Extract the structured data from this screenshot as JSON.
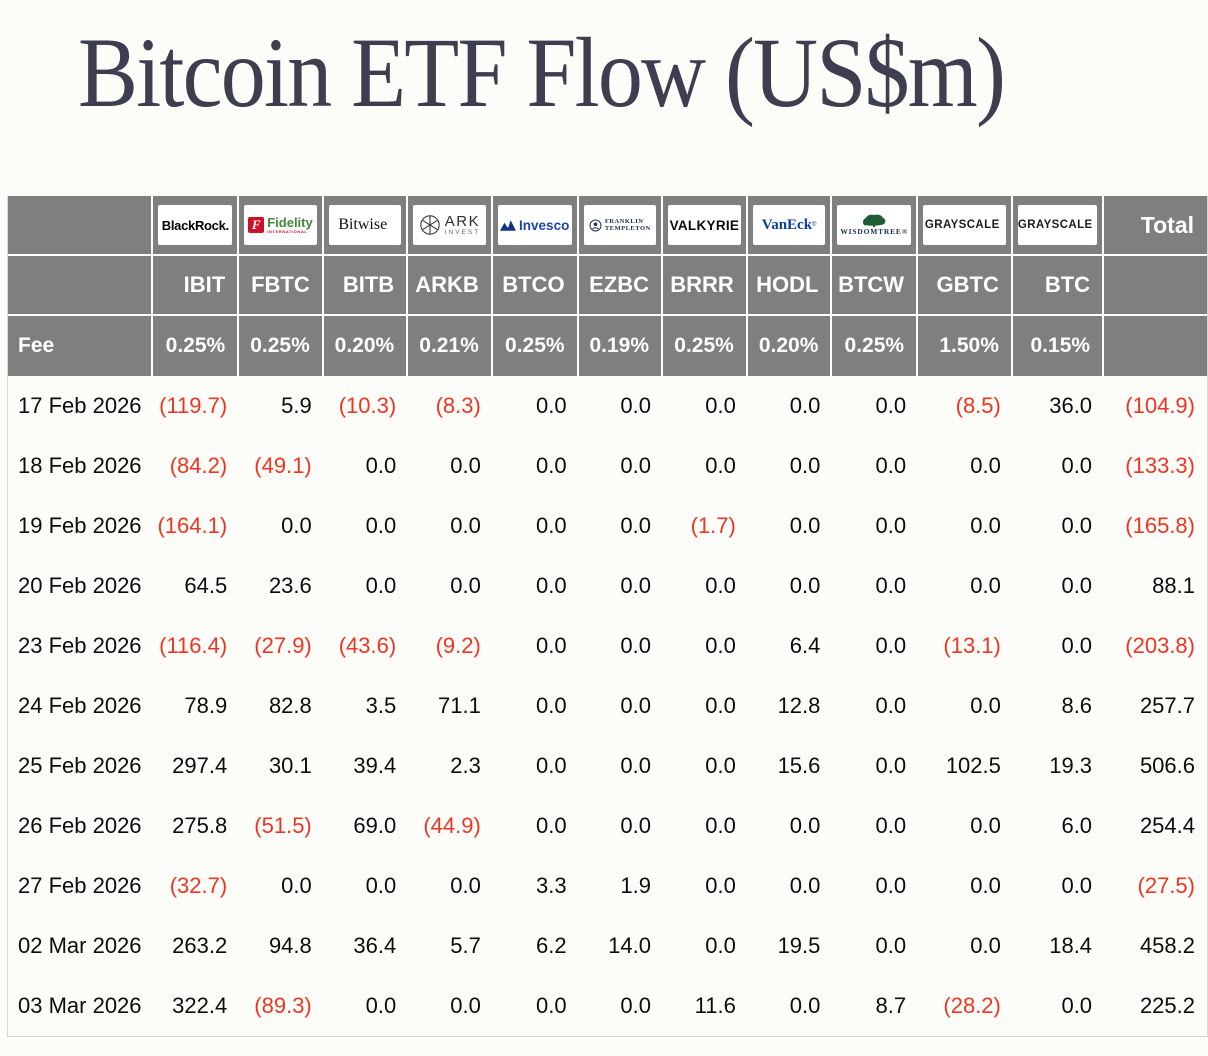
{
  "page": {
    "title": "Bitcoin ETF Flow (US$m)"
  },
  "colors": {
    "background": "#fcfcf8",
    "title_text": "#3d3e4f",
    "header_bg": "#7f7f7f",
    "header_text": "#ffffff",
    "value_text": "#0c0c0c",
    "negative_value": "#ee3524",
    "logo_box_bg": "#ffffff"
  },
  "table": {
    "fee_label": "Fee",
    "total_label": "Total",
    "columns": [
      {
        "ticker": "IBIT",
        "fee": "0.25%",
        "issuer": "BlackRock"
      },
      {
        "ticker": "FBTC",
        "fee": "0.25%",
        "issuer": "Fidelity"
      },
      {
        "ticker": "BITB",
        "fee": "0.20%",
        "issuer": "Bitwise"
      },
      {
        "ticker": "ARKB",
        "fee": "0.21%",
        "issuer": "ARK Invest"
      },
      {
        "ticker": "BTCO",
        "fee": "0.25%",
        "issuer": "Invesco"
      },
      {
        "ticker": "EZBC",
        "fee": "0.19%",
        "issuer": "Franklin Templeton"
      },
      {
        "ticker": "BRRR",
        "fee": "0.25%",
        "issuer": "Valkyrie"
      },
      {
        "ticker": "HODL",
        "fee": "0.20%",
        "issuer": "VanEck"
      },
      {
        "ticker": "BTCW",
        "fee": "0.25%",
        "issuer": "WisdomTree"
      },
      {
        "ticker": "GBTC",
        "fee": "1.50%",
        "issuer": "Grayscale"
      },
      {
        "ticker": "BTC",
        "fee": "0.15%",
        "issuer": "Grayscale"
      }
    ],
    "logos": {
      "blackrock": {
        "text": "BlackRock."
      },
      "fidelity": {
        "mark": "F",
        "name": "Fidelity",
        "sub": "INTERNATIONAL"
      },
      "bitwise": {
        "name": "Bitwise",
        "reg": "®"
      },
      "ark": {
        "name": "ARK",
        "sub": "INVEST"
      },
      "invesco": {
        "name": "Invesco"
      },
      "franklin": {
        "line1": "FRANKLIN",
        "line2": "TEMPLETON"
      },
      "valkyrie": {
        "name": "VALKYRIE"
      },
      "vaneck": {
        "name": "VanEck",
        "reg": "®"
      },
      "wisdomtree": {
        "name": "WISDOMTREE®"
      },
      "grayscale1": {
        "name": "GRAYSCALE",
        "reg": "®"
      },
      "grayscale2": {
        "name": "GRAYSCALE",
        "reg": "®"
      }
    },
    "rows": [
      {
        "date": "17 Feb 2026",
        "values": [
          "(119.7)",
          "5.9",
          "(10.3)",
          "(8.3)",
          "0.0",
          "0.0",
          "0.0",
          "0.0",
          "0.0",
          "(8.5)",
          "36.0"
        ],
        "total": "(104.9)"
      },
      {
        "date": "18 Feb 2026",
        "values": [
          "(84.2)",
          "(49.1)",
          "0.0",
          "0.0",
          "0.0",
          "0.0",
          "0.0",
          "0.0",
          "0.0",
          "0.0",
          "0.0"
        ],
        "total": "(133.3)"
      },
      {
        "date": "19 Feb 2026",
        "values": [
          "(164.1)",
          "0.0",
          "0.0",
          "0.0",
          "0.0",
          "0.0",
          "(1.7)",
          "0.0",
          "0.0",
          "0.0",
          "0.0"
        ],
        "total": "(165.8)"
      },
      {
        "date": "20 Feb 2026",
        "values": [
          "64.5",
          "23.6",
          "0.0",
          "0.0",
          "0.0",
          "0.0",
          "0.0",
          "0.0",
          "0.0",
          "0.0",
          "0.0"
        ],
        "total": "88.1"
      },
      {
        "date": "23 Feb 2026",
        "values": [
          "(116.4)",
          "(27.9)",
          "(43.6)",
          "(9.2)",
          "0.0",
          "0.0",
          "0.0",
          "6.4",
          "0.0",
          "(13.1)",
          "0.0"
        ],
        "total": "(203.8)"
      },
      {
        "date": "24 Feb 2026",
        "values": [
          "78.9",
          "82.8",
          "3.5",
          "71.1",
          "0.0",
          "0.0",
          "0.0",
          "12.8",
          "0.0",
          "0.0",
          "8.6"
        ],
        "total": "257.7"
      },
      {
        "date": "25 Feb 2026",
        "values": [
          "297.4",
          "30.1",
          "39.4",
          "2.3",
          "0.0",
          "0.0",
          "0.0",
          "15.6",
          "0.0",
          "102.5",
          "19.3"
        ],
        "total": "506.6"
      },
      {
        "date": "26 Feb 2026",
        "values": [
          "275.8",
          "(51.5)",
          "69.0",
          "(44.9)",
          "0.0",
          "0.0",
          "0.0",
          "0.0",
          "0.0",
          "0.0",
          "6.0"
        ],
        "total": "254.4"
      },
      {
        "date": "27 Feb 2026",
        "values": [
          "(32.7)",
          "0.0",
          "0.0",
          "0.0",
          "3.3",
          "1.9",
          "0.0",
          "0.0",
          "0.0",
          "0.0",
          "0.0"
        ],
        "total": "(27.5)"
      },
      {
        "date": "02 Mar 2026",
        "values": [
          "263.2",
          "94.8",
          "36.4",
          "5.7",
          "6.2",
          "14.0",
          "0.0",
          "19.5",
          "0.0",
          "0.0",
          "18.4"
        ],
        "total": "458.2"
      },
      {
        "date": "03 Mar 2026",
        "values": [
          "322.4",
          "(89.3)",
          "0.0",
          "0.0",
          "0.0",
          "0.0",
          "11.6",
          "0.0",
          "8.7",
          "(28.2)",
          "0.0"
        ],
        "total": "225.2"
      }
    ]
  },
  "chart_data": {
    "type": "table",
    "title": "Bitcoin ETF Flow (US$m)",
    "columns": [
      "IBIT",
      "FBTC",
      "BITB",
      "ARKB",
      "BTCO",
      "EZBC",
      "BRRR",
      "HODL",
      "BTCW",
      "GBTC",
      "BTC",
      "Total"
    ],
    "issuers": [
      "BlackRock",
      "Fidelity",
      "Bitwise",
      "ARK Invest",
      "Invesco",
      "Franklin Templeton",
      "Valkyrie",
      "VanEck",
      "WisdomTree",
      "Grayscale",
      "Grayscale"
    ],
    "fees_percent": [
      0.25,
      0.25,
      0.2,
      0.21,
      0.25,
      0.19,
      0.25,
      0.2,
      0.25,
      1.5,
      0.15
    ],
    "rows": [
      {
        "date": "17 Feb 2026",
        "values": [
          -119.7,
          5.9,
          -10.3,
          -8.3,
          0.0,
          0.0,
          0.0,
          0.0,
          0.0,
          -8.5,
          36.0
        ],
        "total": -104.9
      },
      {
        "date": "18 Feb 2026",
        "values": [
          -84.2,
          -49.1,
          0.0,
          0.0,
          0.0,
          0.0,
          0.0,
          0.0,
          0.0,
          0.0,
          0.0
        ],
        "total": -133.3
      },
      {
        "date": "19 Feb 2026",
        "values": [
          -164.1,
          0.0,
          0.0,
          0.0,
          0.0,
          0.0,
          -1.7,
          0.0,
          0.0,
          0.0,
          0.0
        ],
        "total": -165.8
      },
      {
        "date": "20 Feb 2026",
        "values": [
          64.5,
          23.6,
          0.0,
          0.0,
          0.0,
          0.0,
          0.0,
          0.0,
          0.0,
          0.0,
          0.0
        ],
        "total": 88.1
      },
      {
        "date": "23 Feb 2026",
        "values": [
          -116.4,
          -27.9,
          -43.6,
          -9.2,
          0.0,
          0.0,
          0.0,
          6.4,
          0.0,
          -13.1,
          0.0
        ],
        "total": -203.8
      },
      {
        "date": "24 Feb 2026",
        "values": [
          78.9,
          82.8,
          3.5,
          71.1,
          0.0,
          0.0,
          0.0,
          12.8,
          0.0,
          0.0,
          8.6
        ],
        "total": 257.7
      },
      {
        "date": "25 Feb 2026",
        "values": [
          297.4,
          30.1,
          39.4,
          2.3,
          0.0,
          0.0,
          0.0,
          15.6,
          0.0,
          102.5,
          19.3
        ],
        "total": 506.6
      },
      {
        "date": "26 Feb 2026",
        "values": [
          275.8,
          -51.5,
          69.0,
          -44.9,
          0.0,
          0.0,
          0.0,
          0.0,
          0.0,
          0.0,
          6.0
        ],
        "total": 254.4
      },
      {
        "date": "27 Feb 2026",
        "values": [
          -32.7,
          0.0,
          0.0,
          0.0,
          3.3,
          1.9,
          0.0,
          0.0,
          0.0,
          0.0,
          0.0
        ],
        "total": -27.5
      },
      {
        "date": "02 Mar 2026",
        "values": [
          263.2,
          94.8,
          36.4,
          5.7,
          6.2,
          14.0,
          0.0,
          19.5,
          0.0,
          0.0,
          18.4
        ],
        "total": 458.2
      },
      {
        "date": "03 Mar 2026",
        "values": [
          322.4,
          -89.3,
          0.0,
          0.0,
          0.0,
          0.0,
          11.6,
          0.0,
          8.7,
          -28.2,
          0.0
        ],
        "total": 225.2
      }
    ],
    "negative_format": "parentheses-red"
  }
}
